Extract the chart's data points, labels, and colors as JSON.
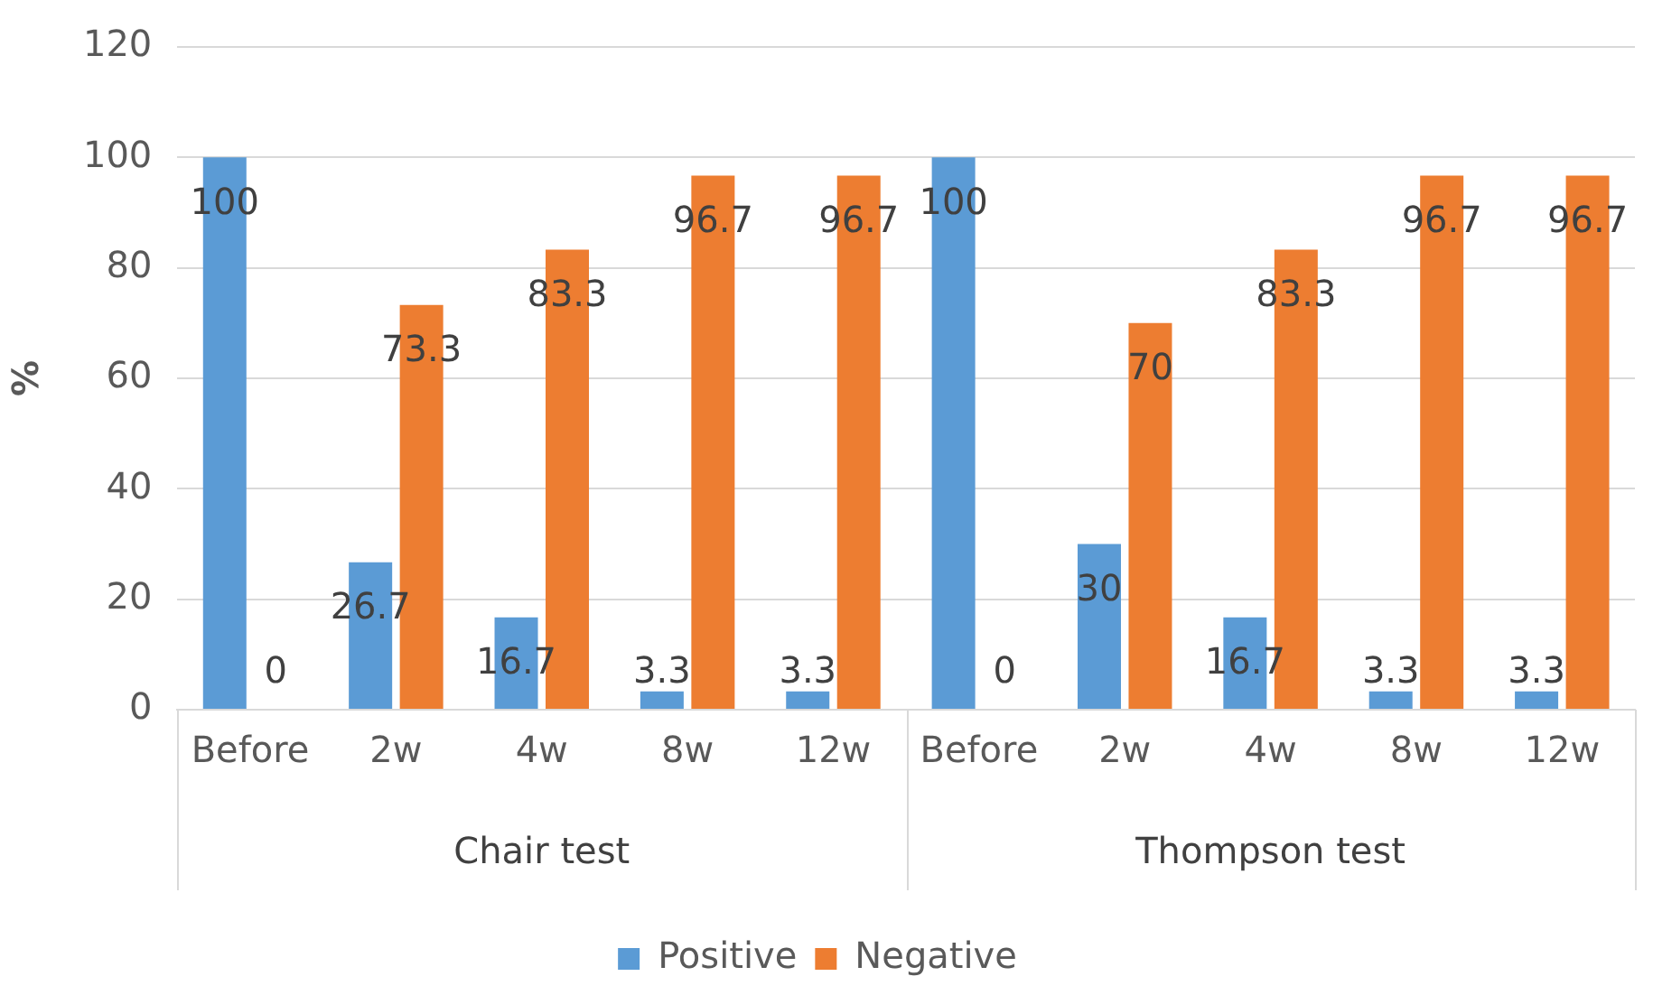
{
  "chart_data": {
    "type": "bar",
    "ylabel": "%",
    "categories": [
      "Before",
      "2w",
      "4w",
      "8w",
      "12w",
      "Before",
      "2w",
      "4w",
      "8w",
      "12w"
    ],
    "series": [
      {
        "name": "Positive",
        "color": "#5b9bd5",
        "values": [
          100,
          26.7,
          16.7,
          3.3,
          3.3,
          100,
          30,
          16.7,
          3.3,
          3.3
        ]
      },
      {
        "name": "Negative",
        "color": "#ed7d31",
        "values": [
          0,
          73.3,
          83.3,
          96.7,
          96.7,
          0,
          70,
          83.3,
          96.7,
          96.7
        ]
      }
    ],
    "annotations": [
      "Chair test",
      "Thompson test"
    ],
    "ylim": [
      0,
      120
    ],
    "yticks": [
      0,
      20,
      40,
      60,
      80,
      100,
      120
    ],
    "grid": "y",
    "legend": "bottom",
    "data_labels": true
  }
}
